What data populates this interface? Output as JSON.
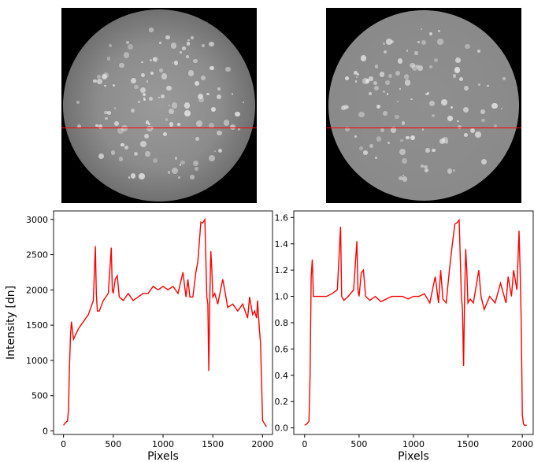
{
  "images": [
    {
      "name": "solar-disk-raw",
      "cut_row_fraction": 0.615
    },
    {
      "name": "solar-disk-normalized",
      "cut_row_fraction": 0.615
    }
  ],
  "chart_data": [
    {
      "type": "line",
      "xlabel": "Pixels",
      "ylabel": "Intensity [dn]",
      "xlim": [
        -100,
        2100
      ],
      "ylim": [
        -50,
        3120
      ],
      "xticks": [
        0,
        500,
        1000,
        1500,
        2000
      ],
      "yticks": [
        0,
        500,
        1000,
        1500,
        2000,
        2500,
        3000
      ],
      "series": [
        {
          "color": "#ff0000",
          "x": [
            0,
            20,
            40,
            50,
            60,
            70,
            80,
            100,
            150,
            200,
            250,
            300,
            320,
            330,
            340,
            360,
            400,
            450,
            480,
            490,
            500,
            520,
            540,
            560,
            600,
            650,
            700,
            750,
            800,
            850,
            900,
            950,
            1000,
            1050,
            1100,
            1150,
            1200,
            1230,
            1250,
            1270,
            1300,
            1330,
            1350,
            1380,
            1400,
            1420,
            1440,
            1450,
            1460,
            1470,
            1480,
            1490,
            1500,
            1520,
            1550,
            1600,
            1620,
            1650,
            1700,
            1750,
            1800,
            1850,
            1870,
            1900,
            1920,
            1940,
            1950,
            1970,
            1980,
            1990,
            2000,
            2020,
            2040
          ],
          "y": [
            80,
            120,
            140,
            300,
            900,
            1350,
            1550,
            1300,
            1450,
            1550,
            1650,
            1850,
            2620,
            1950,
            1700,
            1700,
            1850,
            1950,
            2600,
            2000,
            1950,
            2150,
            2200,
            1900,
            1850,
            1950,
            1850,
            1900,
            1950,
            1950,
            2050,
            2000,
            2050,
            2000,
            2050,
            1950,
            2250,
            1900,
            2150,
            1900,
            1900,
            2250,
            2400,
            2960,
            2950,
            3000,
            1900,
            1800,
            850,
            1900,
            2550,
            2300,
            1900,
            1950,
            1800,
            2150,
            2000,
            1750,
            1800,
            1700,
            1800,
            1600,
            1900,
            1650,
            1700,
            1600,
            1850,
            1400,
            1250,
            700,
            150,
            100,
            60
          ]
        }
      ]
    },
    {
      "type": "line",
      "xlabel": "Pixels",
      "ylabel": "Relative intensity",
      "xlim": [
        -100,
        2100
      ],
      "ylim": [
        -0.05,
        1.65
      ],
      "xticks": [
        0,
        500,
        1000,
        1500,
        2000
      ],
      "yticks": [
        0.0,
        0.2,
        0.4,
        0.6,
        0.8,
        1.0,
        1.2,
        1.4,
        1.6
      ],
      "series": [
        {
          "color": "#ff0000",
          "x": [
            0,
            20,
            40,
            50,
            60,
            70,
            80,
            100,
            150,
            200,
            250,
            300,
            330,
            340,
            360,
            400,
            450,
            480,
            490,
            500,
            520,
            540,
            560,
            600,
            650,
            700,
            750,
            800,
            850,
            900,
            950,
            1000,
            1050,
            1100,
            1150,
            1200,
            1230,
            1250,
            1270,
            1300,
            1330,
            1350,
            1380,
            1400,
            1420,
            1440,
            1450,
            1460,
            1470,
            1480,
            1490,
            1500,
            1520,
            1550,
            1600,
            1620,
            1650,
            1700,
            1750,
            1800,
            1850,
            1870,
            1900,
            1920,
            1950,
            1970,
            1980,
            1990,
            2000,
            2010,
            2020,
            2040
          ],
          "y": [
            0.02,
            0.03,
            0.05,
            0.4,
            1.15,
            1.28,
            1.0,
            1.0,
            1.0,
            1.0,
            1.02,
            1.05,
            1.53,
            1.0,
            0.97,
            1.0,
            1.05,
            1.42,
            1.05,
            1.0,
            1.18,
            1.2,
            1.0,
            0.97,
            1.0,
            0.96,
            0.98,
            1.0,
            1.0,
            1.0,
            0.98,
            1.0,
            1.0,
            1.02,
            0.95,
            1.15,
            0.95,
            1.2,
            0.98,
            0.95,
            1.2,
            1.35,
            1.55,
            1.56,
            1.58,
            1.0,
            0.9,
            0.47,
            1.0,
            1.36,
            1.2,
            0.95,
            0.98,
            0.95,
            1.2,
            1.0,
            0.9,
            1.0,
            0.95,
            1.1,
            0.95,
            1.15,
            1.0,
            1.2,
            1.05,
            1.5,
            1.2,
            0.8,
            0.1,
            0.03,
            0.02,
            0.02
          ]
        }
      ]
    }
  ]
}
